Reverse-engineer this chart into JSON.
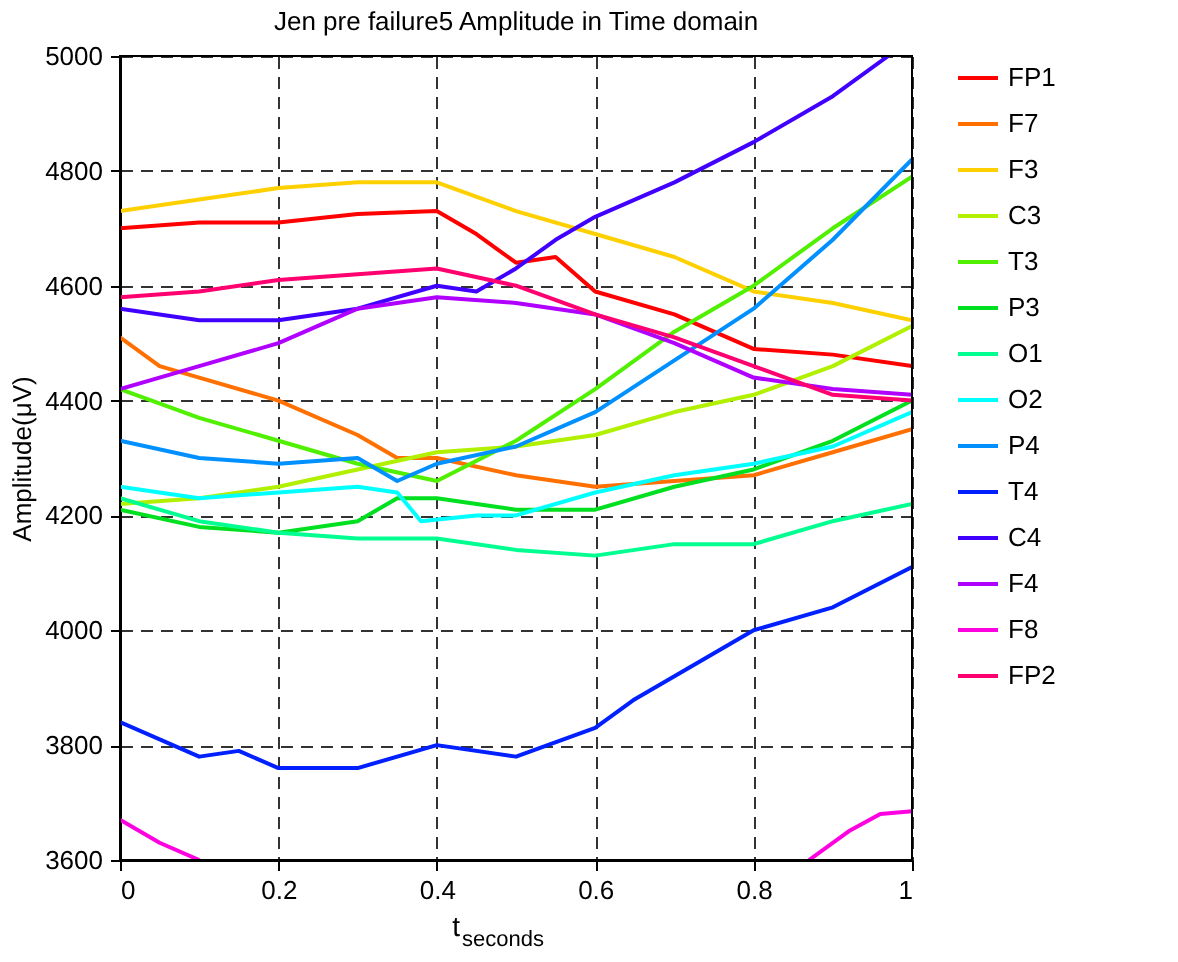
{
  "chart_data": {
    "type": "line",
    "title": "Jen pre failure5 Amplitude in Time domain",
    "xlabel": "t$_{seconds}$",
    "ylabel": "Amplitude(μV)",
    "xlim": [
      0,
      1
    ],
    "xticks": [
      0,
      0.2,
      0.4,
      0.6,
      0.8,
      1
    ],
    "ylim": [
      3600,
      5000
    ],
    "yticks": [
      3600,
      3800,
      4000,
      4200,
      4400,
      4600,
      4800,
      5000
    ],
    "grid": true,
    "legend": "right",
    "line_style": "solid",
    "marker": "none",
    "x": [
      0,
      0.1,
      0.2,
      0.3,
      0.4,
      0.5,
      0.6,
      0.7,
      0.8,
      0.9,
      1
    ],
    "series": [
      {
        "name": "FP1",
        "color": "#ff0000",
        "x": [
          0,
          0.1,
          0.2,
          0.3,
          0.4,
          0.45,
          0.5,
          0.55,
          0.6,
          0.7,
          0.8,
          0.9,
          1
        ],
        "values": [
          4700,
          4710,
          4710,
          4725,
          4730,
          4690,
          4640,
          4650,
          4590,
          4550,
          4490,
          4480,
          4460
        ]
      },
      {
        "name": "F7",
        "color": "#ff7000",
        "x": [
          0,
          0.05,
          0.1,
          0.2,
          0.3,
          0.35,
          0.4,
          0.5,
          0.6,
          0.7,
          0.8,
          0.9,
          1
        ],
        "values": [
          4510,
          4460,
          4440,
          4400,
          4340,
          4300,
          4300,
          4270,
          4250,
          4260,
          4270,
          4310,
          4350
        ]
      },
      {
        "name": "F3",
        "color": "#ffd000",
        "values": [
          4730,
          4750,
          4770,
          4780,
          4780,
          4730,
          4690,
          4650,
          4590,
          4570,
          4540
        ]
      },
      {
        "name": "C3",
        "color": "#b0f000",
        "values": [
          4220,
          4230,
          4250,
          4280,
          4310,
          4320,
          4340,
          4380,
          4410,
          4460,
          4530
        ]
      },
      {
        "name": "T3",
        "color": "#50f000",
        "values": [
          4420,
          4370,
          4330,
          4290,
          4260,
          4330,
          4420,
          4520,
          4600,
          4700,
          4790
        ]
      },
      {
        "name": "P3",
        "color": "#00e020",
        "x": [
          0,
          0.1,
          0.2,
          0.3,
          0.35,
          0.4,
          0.5,
          0.6,
          0.7,
          0.8,
          0.9,
          1
        ],
        "values": [
          4210,
          4180,
          4170,
          4190,
          4230,
          4230,
          4210,
          4210,
          4250,
          4280,
          4330,
          4400
        ]
      },
      {
        "name": "O1",
        "color": "#00ff90",
        "values": [
          4230,
          4190,
          4170,
          4160,
          4160,
          4140,
          4130,
          4150,
          4150,
          4190,
          4220
        ]
      },
      {
        "name": "O2",
        "color": "#00ffff",
        "x": [
          0,
          0.1,
          0.2,
          0.3,
          0.35,
          0.38,
          0.45,
          0.5,
          0.6,
          0.7,
          0.8,
          0.9,
          1
        ],
        "values": [
          4250,
          4230,
          4240,
          4250,
          4240,
          4190,
          4200,
          4200,
          4240,
          4270,
          4290,
          4320,
          4380
        ]
      },
      {
        "name": "P4",
        "color": "#0090ff",
        "x": [
          0,
          0.1,
          0.2,
          0.3,
          0.35,
          0.4,
          0.5,
          0.6,
          0.7,
          0.8,
          0.9,
          1
        ],
        "values": [
          4330,
          4300,
          4290,
          4300,
          4260,
          4290,
          4320,
          4380,
          4470,
          4560,
          4680,
          4820
        ]
      },
      {
        "name": "T4",
        "color": "#0020ff",
        "x": [
          0,
          0.1,
          0.15,
          0.2,
          0.3,
          0.4,
          0.5,
          0.6,
          0.65,
          0.7,
          0.8,
          0.9,
          1
        ],
        "values": [
          3840,
          3780,
          3790,
          3760,
          3760,
          3800,
          3780,
          3830,
          3880,
          3920,
          4000,
          4040,
          4110
        ]
      },
      {
        "name": "C4",
        "color": "#4000ff",
        "x": [
          0,
          0.1,
          0.2,
          0.3,
          0.4,
          0.45,
          0.5,
          0.55,
          0.6,
          0.7,
          0.8,
          0.9,
          0.97
        ],
        "values": [
          4560,
          4540,
          4540,
          4560,
          4600,
          4590,
          4630,
          4680,
          4720,
          4780,
          4850,
          4930,
          5000
        ]
      },
      {
        "name": "F4",
        "color": "#b000ff",
        "values": [
          4420,
          4460,
          4500,
          4560,
          4580,
          4570,
          4550,
          4500,
          4440,
          4420,
          4410
        ]
      },
      {
        "name": "F8",
        "color": "#ff00e0",
        "x": [
          0,
          0.05,
          0.1,
          0.5,
          0.87,
          0.92,
          0.96,
          1
        ],
        "values": [
          3670,
          3630,
          3600,
          null,
          3600,
          3650,
          3680,
          3685
        ]
      },
      {
        "name": "FP2",
        "color": "#ff0070",
        "values": [
          4580,
          4590,
          4610,
          4620,
          4630,
          4600,
          4550,
          4510,
          4460,
          4410,
          4400
        ]
      }
    ]
  }
}
